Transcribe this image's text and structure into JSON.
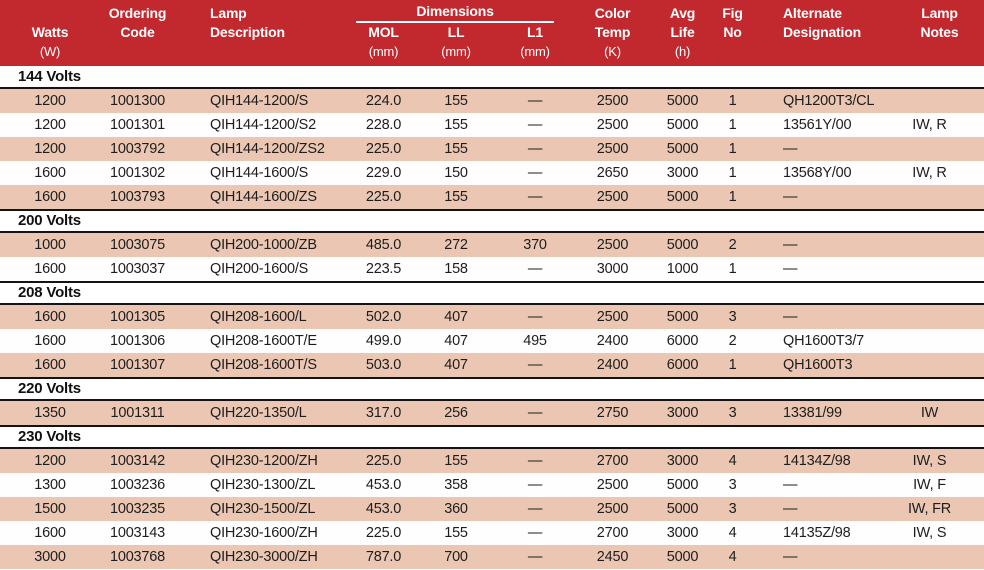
{
  "title": "Lamp specification table",
  "colors": {
    "header_red": "#c1292f",
    "row_pink": "#ebc7b3",
    "row_white": "#fefefe",
    "rule_black": "#141414",
    "header_text": "#ffffff",
    "body_text": "#1d1d1d"
  },
  "dimensions_group_label": "Dimensions",
  "column_ids": [
    "watts",
    "ordering-code",
    "lamp-description",
    "mol",
    "ll",
    "l1",
    "color-temp",
    "avg-life",
    "fig-no",
    "alternate-designation",
    "lamp-notes"
  ],
  "columns": [
    {
      "id": "watts",
      "line1": "",
      "line2": "Watts",
      "line3": "(W)"
    },
    {
      "id": "ordering-code",
      "line1": "Ordering",
      "line2": "Code",
      "line3": ""
    },
    {
      "id": "lamp-description",
      "line1": "Lamp",
      "line2": "Description",
      "line3": ""
    },
    {
      "id": "mol",
      "line1": "",
      "line2": "MOL",
      "line3": "(mm)"
    },
    {
      "id": "ll",
      "line1": "",
      "line2": "LL",
      "line3": "(mm)"
    },
    {
      "id": "l1",
      "line1": "",
      "line2": "L1",
      "line3": "(mm)"
    },
    {
      "id": "color-temp",
      "line1": "Color",
      "line2": "Temp",
      "line3": "(K)"
    },
    {
      "id": "avg-life",
      "line1": "Avg",
      "line2": "Life",
      "line3": "(h)"
    },
    {
      "id": "fig-no",
      "line1": "Fig",
      "line2": "No",
      "line3": ""
    },
    {
      "id": "alternate-designation",
      "line1": "Alternate",
      "line2": "Designation",
      "line3": ""
    },
    {
      "id": "lamp-notes",
      "line1": "Lamp",
      "line2": "Notes",
      "line3": ""
    }
  ],
  "sections": [
    {
      "title": "144 Volts",
      "rows": [
        [
          "1200",
          "1001300",
          "QIH144-1200/S",
          "224.0",
          "155",
          "—",
          "2500",
          "5000",
          "1",
          "QH1200T3/CL",
          ""
        ],
        [
          "1200",
          "1001301",
          "QIH144-1200/S2",
          "228.0",
          "155",
          "—",
          "2500",
          "5000",
          "1",
          "13561Y/00",
          "IW, R"
        ],
        [
          "1200",
          "1003792",
          "QIH144-1200/ZS2",
          "225.0",
          "155",
          "—",
          "2500",
          "5000",
          "1",
          "—",
          ""
        ],
        [
          "1600",
          "1001302",
          "QIH144-1600/S",
          "229.0",
          "150",
          "—",
          "2650",
          "3000",
          "1",
          "13568Y/00",
          "IW, R"
        ],
        [
          "1600",
          "1003793",
          "QIH144-1600/ZS",
          "225.0",
          "155",
          "—",
          "2500",
          "5000",
          "1",
          "—",
          ""
        ]
      ]
    },
    {
      "title": "200 Volts",
      "rows": [
        [
          "1000",
          "1003075",
          "QIH200-1000/ZB",
          "485.0",
          "272",
          "370",
          "2500",
          "5000",
          "2",
          "—",
          ""
        ],
        [
          "1600",
          "1003037",
          "QIH200-1600/S",
          "223.5",
          "158",
          "—",
          "3000",
          "1000",
          "1",
          "—",
          ""
        ]
      ]
    },
    {
      "title": "208 Volts",
      "rows": [
        [
          "1600",
          "1001305",
          "QIH208-1600/L",
          "502.0",
          "407",
          "—",
          "2500",
          "5000",
          "3",
          "—",
          ""
        ],
        [
          "1600",
          "1001306",
          "QIH208-1600T/E",
          "499.0",
          "407",
          "495",
          "2400",
          "6000",
          "2",
          "QH1600T3/7",
          ""
        ],
        [
          "1600",
          "1001307",
          "QIH208-1600T/S",
          "503.0",
          "407",
          "—",
          "2400",
          "6000",
          "1",
          "QH1600T3",
          ""
        ]
      ]
    },
    {
      "title": "220 Volts",
      "rows": [
        [
          "1350",
          "1001311",
          "QIH220-1350/L",
          "317.0",
          "256",
          "—",
          "2750",
          "3000",
          "3",
          "13381/99",
          "IW"
        ]
      ]
    },
    {
      "title": "230 Volts",
      "rows": [
        [
          "1200",
          "1003142",
          "QIH230-1200/ZH",
          "225.0",
          "155",
          "—",
          "2700",
          "3000",
          "4",
          "14134Z/98",
          "IW, S"
        ],
        [
          "1300",
          "1003236",
          "QIH230-1300/ZL",
          "453.0",
          "358",
          "—",
          "2500",
          "5000",
          "3",
          "—",
          "IW, F"
        ],
        [
          "1500",
          "1003235",
          "QIH230-1500/ZL",
          "453.0",
          "360",
          "—",
          "2500",
          "5000",
          "3",
          "—",
          "IW, FR"
        ],
        [
          "1600",
          "1003143",
          "QIH230-1600/ZH",
          "225.0",
          "155",
          "—",
          "2700",
          "3000",
          "4",
          "14135Z/98",
          "IW, S"
        ],
        [
          "3000",
          "1003768",
          "QIH230-3000/ZH",
          "787.0",
          "700",
          "—",
          "2450",
          "5000",
          "4",
          "—",
          ""
        ]
      ]
    }
  ]
}
